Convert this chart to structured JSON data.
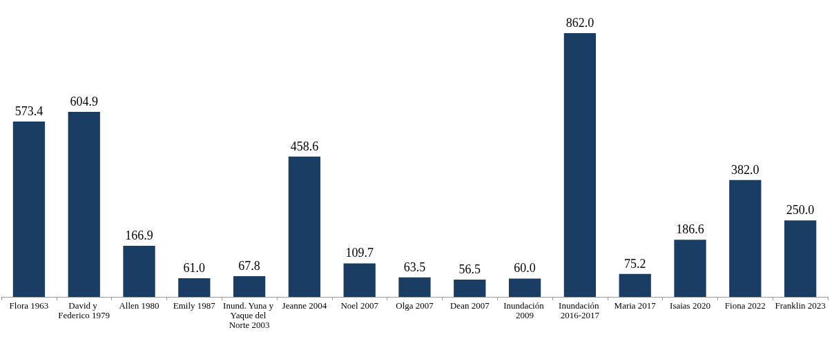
{
  "chart_data": {
    "type": "bar",
    "categories": [
      "Flora 1963",
      "David y Federico 1979",
      "Allen 1980",
      "Emily 1987",
      "Inund. Yuna y Yaque del Norte 2003",
      "Jeanne 2004",
      "Noel 2007",
      "Olga 2007",
      "Dean 2007",
      "Inundación 2009",
      "Inundación 2016-2017",
      "Maria 2017",
      "Isaias 2020",
      "Fiona 2022",
      "Franklin 2023"
    ],
    "values": [
      573.4,
      604.9,
      166.9,
      61.0,
      67.8,
      458.6,
      109.7,
      63.5,
      56.5,
      60.0,
      862.0,
      75.2,
      186.6,
      382.0,
      250.0
    ],
    "value_labels": [
      "573.4",
      "604.9",
      "166.9",
      "61.0",
      "67.8",
      "458.6",
      "109.7",
      "63.5",
      "56.5",
      "60.0",
      "862.0",
      "75.2",
      "186.6",
      "382.0",
      "250.0"
    ],
    "color": "#1a3d63"
  }
}
